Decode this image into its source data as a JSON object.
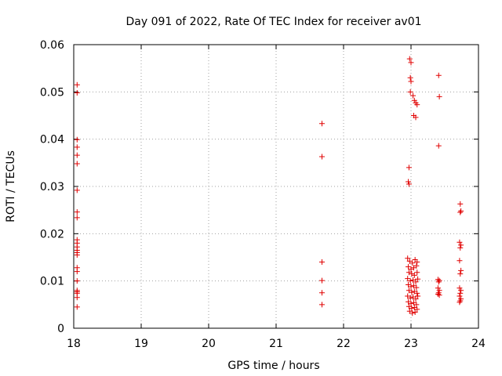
{
  "chart_data": {
    "type": "scatter",
    "title": "Day 091 of 2022, Rate Of TEC Index for receiver av01",
    "xlabel": "GPS time / hours",
    "ylabel": "ROTI / TECUs",
    "xlim": [
      18,
      24
    ],
    "ylim": [
      0,
      0.06
    ],
    "xticks": [
      "18",
      "19",
      "20",
      "21",
      "22",
      "23",
      "24"
    ],
    "yticks": [
      "0",
      "0.01",
      "0.02",
      "0.03",
      "0.04",
      "0.05",
      "0.06"
    ],
    "grid": true,
    "legend": "none",
    "marker": "plus",
    "color": "#e00000",
    "points": [
      [
        18.05,
        0.0515
      ],
      [
        18.05,
        0.0498
      ],
      [
        18.05,
        0.0399
      ],
      [
        18.05,
        0.0383
      ],
      [
        18.05,
        0.0366
      ],
      [
        18.05,
        0.0348
      ],
      [
        18.05,
        0.0292
      ],
      [
        18.05,
        0.0246
      ],
      [
        18.05,
        0.0234
      ],
      [
        18.05,
        0.0187
      ],
      [
        18.05,
        0.018
      ],
      [
        18.05,
        0.0172
      ],
      [
        18.05,
        0.0165
      ],
      [
        18.05,
        0.016
      ],
      [
        18.05,
        0.0155
      ],
      [
        18.05,
        0.0128
      ],
      [
        18.05,
        0.012
      ],
      [
        18.05,
        0.01
      ],
      [
        18.05,
        0.008
      ],
      [
        18.05,
        0.0077
      ],
      [
        18.05,
        0.0074
      ],
      [
        18.05,
        0.0065
      ],
      [
        18.05,
        0.0045
      ],
      [
        21.68,
        0.0433
      ],
      [
        21.68,
        0.0363
      ],
      [
        21.68,
        0.014
      ],
      [
        21.68,
        0.0101
      ],
      [
        21.68,
        0.0075
      ],
      [
        21.68,
        0.005
      ],
      [
        22.98,
        0.057
      ],
      [
        23.0,
        0.0562
      ],
      [
        22.99,
        0.053
      ],
      [
        23.0,
        0.0522
      ],
      [
        22.99,
        0.05
      ],
      [
        23.03,
        0.0492
      ],
      [
        23.05,
        0.0482
      ],
      [
        23.07,
        0.0477
      ],
      [
        23.09,
        0.0473
      ],
      [
        23.04,
        0.045
      ],
      [
        23.07,
        0.0446
      ],
      [
        22.97,
        0.034
      ],
      [
        22.96,
        0.031
      ],
      [
        22.97,
        0.0305
      ],
      [
        22.95,
        0.0148
      ],
      [
        22.98,
        0.0142
      ],
      [
        23.02,
        0.0138
      ],
      [
        23.06,
        0.0145
      ],
      [
        23.09,
        0.014
      ],
      [
        22.96,
        0.013
      ],
      [
        23.0,
        0.0125
      ],
      [
        23.04,
        0.0128
      ],
      [
        23.08,
        0.0132
      ],
      [
        22.97,
        0.0118
      ],
      [
        23.01,
        0.0115
      ],
      [
        23.05,
        0.0112
      ],
      [
        23.09,
        0.0118
      ],
      [
        22.95,
        0.0105
      ],
      [
        22.99,
        0.01
      ],
      [
        23.03,
        0.0102
      ],
      [
        23.07,
        0.0098
      ],
      [
        23.1,
        0.0104
      ],
      [
        22.96,
        0.0092
      ],
      [
        23.0,
        0.0088
      ],
      [
        23.04,
        0.009
      ],
      [
        23.08,
        0.0086
      ],
      [
        22.97,
        0.008
      ],
      [
        23.01,
        0.0076
      ],
      [
        23.05,
        0.0078
      ],
      [
        23.09,
        0.0074
      ],
      [
        22.95,
        0.0068
      ],
      [
        22.99,
        0.0064
      ],
      [
        23.03,
        0.0066
      ],
      [
        23.07,
        0.0062
      ],
      [
        23.1,
        0.0068
      ],
      [
        22.96,
        0.0056
      ],
      [
        23.0,
        0.0052
      ],
      [
        23.04,
        0.0054
      ],
      [
        23.08,
        0.005
      ],
      [
        22.97,
        0.0046
      ],
      [
        23.01,
        0.0042
      ],
      [
        23.05,
        0.0044
      ],
      [
        23.09,
        0.004
      ],
      [
        22.98,
        0.0036
      ],
      [
        23.02,
        0.0032
      ],
      [
        23.06,
        0.0034
      ],
      [
        23.41,
        0.0535
      ],
      [
        23.42,
        0.049
      ],
      [
        23.41,
        0.0386
      ],
      [
        23.4,
        0.0103
      ],
      [
        23.42,
        0.0101
      ],
      [
        23.41,
        0.0098
      ],
      [
        23.4,
        0.0085
      ],
      [
        23.42,
        0.008
      ],
      [
        23.41,
        0.0075
      ],
      [
        23.4,
        0.0072
      ],
      [
        23.42,
        0.007
      ],
      [
        23.73,
        0.0263
      ],
      [
        23.74,
        0.0248
      ],
      [
        23.73,
        0.0245
      ],
      [
        23.72,
        0.0182
      ],
      [
        23.74,
        0.0176
      ],
      [
        23.73,
        0.017
      ],
      [
        23.72,
        0.0143
      ],
      [
        23.74,
        0.0122
      ],
      [
        23.73,
        0.0115
      ],
      [
        23.72,
        0.0085
      ],
      [
        23.74,
        0.008
      ],
      [
        23.73,
        0.0074
      ],
      [
        23.72,
        0.0068
      ],
      [
        23.74,
        0.0062
      ],
      [
        23.73,
        0.0058
      ],
      [
        23.72,
        0.0055
      ]
    ]
  }
}
